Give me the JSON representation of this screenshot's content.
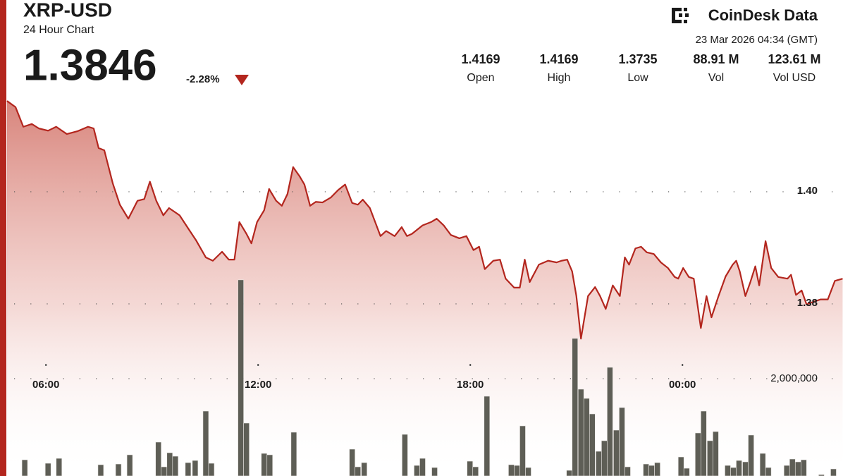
{
  "header": {
    "title": "XRP-USD",
    "subtitle": "24 Hour Chart",
    "price": "1.3846",
    "change": "-2.28%",
    "brand": "CoinDesk Data",
    "timestamp": "23 Mar 2026 04:34 (GMT)",
    "stats": [
      {
        "value": "1.4169",
        "label": "Open"
      },
      {
        "value": "1.4169",
        "label": "High"
      },
      {
        "value": "1.3735",
        "label": "Low"
      },
      {
        "value": "88.91 M",
        "label": "Vol"
      },
      {
        "value": "123.61 M",
        "label": "Vol USD"
      }
    ]
  },
  "chart_data": {
    "type": "line",
    "xlim": [
      4.9,
      28.54
    ],
    "xticks": [
      {
        "value": 6,
        "label": "06:00"
      },
      {
        "value": 12,
        "label": "12:00"
      },
      {
        "value": 18,
        "label": "18:00"
      },
      {
        "value": 24,
        "label": "00:00"
      }
    ],
    "ylim": [
      1.3493,
      1.4166
    ],
    "yticks": [
      1.38,
      {
        "value": 1.4,
        "label": "1.40"
      }
    ],
    "y2lim": [
      0,
      7750000
    ],
    "y2ticks": [
      {
        "value": 2000000,
        "label": "2,000,000"
      }
    ],
    "grid": true,
    "series": [
      {
        "color": "#b3261e",
        "x": [
          4.9,
          5.14,
          5.36,
          5.6,
          5.8,
          6.06,
          6.29,
          6.59,
          6.89,
          7.19,
          7.35,
          7.49,
          7.65,
          7.89,
          8.09,
          8.33,
          8.59,
          8.78,
          8.94,
          9.12,
          9.32,
          9.48,
          9.78,
          10.04,
          10.24,
          10.52,
          10.72,
          10.98,
          11.17,
          11.33,
          11.47,
          11.67,
          11.81,
          11.97,
          12.17,
          12.31,
          12.51,
          12.67,
          12.83,
          12.99,
          13.17,
          13.31,
          13.47,
          13.63,
          13.82,
          14.06,
          14.26,
          14.46,
          14.66,
          14.82,
          14.96,
          15.16,
          15.46,
          15.62,
          15.86,
          16.06,
          16.21,
          16.35,
          16.65,
          16.89,
          17.05,
          17.25,
          17.45,
          17.69,
          17.89,
          18.09,
          18.25,
          18.41,
          18.65,
          18.84,
          19.0,
          19.24,
          19.4,
          19.54,
          19.68,
          19.94,
          20.2,
          20.44,
          20.58,
          20.74,
          20.88,
          21.0,
          21.13,
          21.33,
          21.53,
          21.67,
          21.83,
          22.03,
          22.23,
          22.37,
          22.49,
          22.67,
          22.83,
          22.99,
          23.19,
          23.39,
          23.59,
          23.78,
          23.88,
          24.02,
          24.18,
          24.32,
          24.52,
          24.68,
          24.82,
          25.02,
          25.22,
          25.42,
          25.52,
          25.62,
          25.78,
          25.92,
          26.06,
          26.17,
          26.35,
          26.51,
          26.71,
          26.97,
          27.07,
          27.21,
          27.37,
          27.51,
          27.71,
          27.91,
          28.11,
          28.31,
          28.53
        ],
        "values": [
          1.4162,
          1.4151,
          1.4116,
          1.4121,
          1.4113,
          1.4109,
          1.4116,
          1.4103,
          1.4108,
          1.4116,
          1.4113,
          1.4078,
          1.4074,
          1.4015,
          1.3977,
          1.3952,
          1.3984,
          1.3987,
          1.4018,
          1.3984,
          1.3958,
          1.3971,
          1.3958,
          1.3933,
          1.3914,
          1.3883,
          1.3877,
          1.3893,
          1.3879,
          1.3879,
          1.3946,
          1.3925,
          1.3908,
          1.3946,
          1.3967,
          1.4005,
          1.3984,
          1.3975,
          1.3996,
          1.4044,
          1.4028,
          1.4013,
          1.3975,
          1.3982,
          1.3981,
          1.399,
          1.4003,
          1.4013,
          1.398,
          1.3977,
          1.3986,
          1.3971,
          1.3921,
          1.393,
          1.3921,
          1.3937,
          1.3921,
          1.3925,
          1.394,
          1.3946,
          1.3952,
          1.394,
          1.3923,
          1.3917,
          1.3921,
          1.3896,
          1.3902,
          1.3862,
          1.3877,
          1.3879,
          1.3845,
          1.3829,
          1.3829,
          1.3879,
          1.3839,
          1.387,
          1.3877,
          1.3874,
          1.3877,
          1.3879,
          1.3858,
          1.3814,
          1.3738,
          1.3814,
          1.383,
          1.3814,
          1.3791,
          1.3833,
          1.3814,
          1.3883,
          1.387,
          1.3899,
          1.3902,
          1.3892,
          1.3889,
          1.3874,
          1.3864,
          1.3848,
          1.3845,
          1.3864,
          1.3848,
          1.3845,
          1.3757,
          1.3814,
          1.3776,
          1.3814,
          1.3849,
          1.387,
          1.3877,
          1.3858,
          1.3814,
          1.3839,
          1.3867,
          1.3833,
          1.3912,
          1.3864,
          1.3848,
          1.3845,
          1.3852,
          1.3816,
          1.3824,
          1.3799,
          1.3804,
          1.3808,
          1.3808,
          1.3841,
          1.3845
        ]
      },
      {
        "color": "#5e5e56",
        "type": "bar",
        "axis": "y2",
        "x": [
          5.4,
          6.06,
          6.37,
          7.55,
          8.05,
          8.37,
          9.18,
          9.34,
          9.5,
          9.66,
          10.02,
          10.22,
          10.52,
          10.68,
          11.51,
          11.67,
          12.17,
          12.33,
          13.01,
          14.66,
          14.82,
          15.0,
          16.15,
          16.49,
          16.65,
          16.99,
          17.99,
          18.15,
          18.47,
          19.16,
          19.32,
          19.48,
          19.64,
          20.8,
          20.96,
          21.13,
          21.29,
          21.45,
          21.63,
          21.79,
          21.95,
          22.13,
          22.29,
          22.45,
          22.97,
          23.13,
          23.29,
          23.96,
          24.12,
          24.44,
          24.6,
          24.78,
          24.94,
          25.28,
          25.44,
          25.6,
          25.78,
          25.94,
          26.27,
          26.43,
          26.95,
          27.11,
          27.27,
          27.43,
          27.93,
          28.27
        ],
        "values": [
          333000,
          261000,
          362000,
          232000,
          246000,
          435000,
          696000,
          188000,
          478000,
          406000,
          275000,
          319000,
          1333000,
          261000,
          4029000,
          1087000,
          464000,
          435000,
          899000,
          551000,
          188000,
          275000,
          855000,
          217000,
          362000,
          174000,
          304000,
          188000,
          1638000,
          232000,
          217000,
          1029000,
          174000,
          116000,
          2826000,
          1783000,
          1594000,
          1275000,
          507000,
          725000,
          2232000,
          942000,
          1406000,
          188000,
          246000,
          217000,
          275000,
          391000,
          159000,
          884000,
          1333000,
          725000,
          913000,
          217000,
          174000,
          319000,
          290000,
          841000,
          464000,
          174000,
          217000,
          348000,
          290000,
          333000,
          29000,
          145000
        ]
      }
    ]
  }
}
